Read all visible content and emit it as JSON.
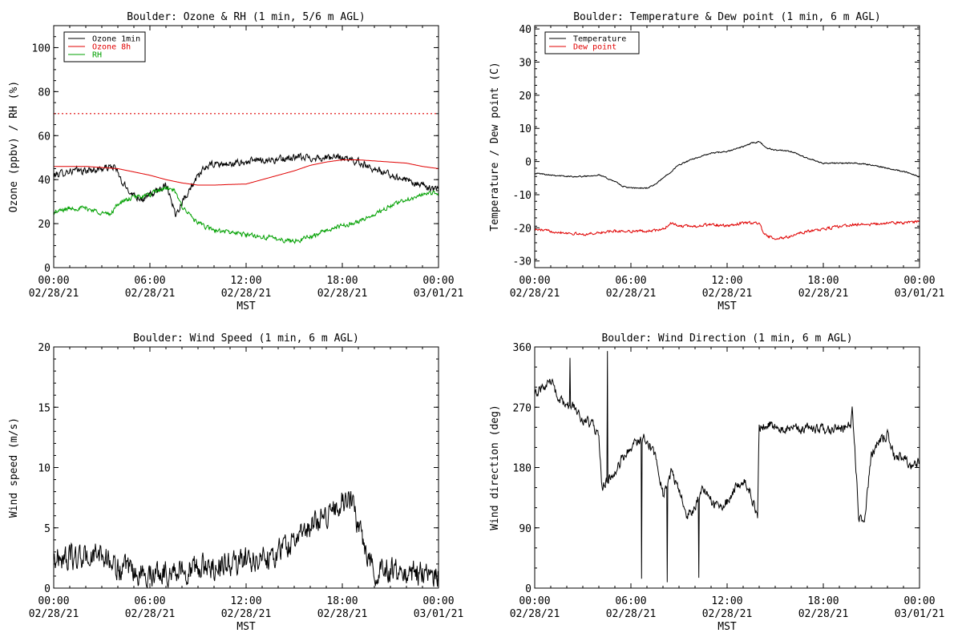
{
  "colors": {
    "black": "#000000",
    "red": "#e00000",
    "green": "#00a000",
    "dotted_red": "#e00000"
  },
  "chart_data": [
    {
      "id": "ozone",
      "type": "line",
      "title": "Boulder: Ozone & RH (1 min, 5/6 m AGL)",
      "xlabel": "MST",
      "ylabel": "Ozone (ppbv) / RH (%)",
      "xlim": [
        0,
        24
      ],
      "ylim": [
        0,
        110
      ],
      "yticks": [
        0,
        20,
        40,
        60,
        80,
        100
      ],
      "xticks": [
        {
          "t": 0,
          "time": "00:00",
          "date": "02/28/21"
        },
        {
          "t": 6,
          "time": "06:00",
          "date": "02/28/21"
        },
        {
          "t": 12,
          "time": "12:00",
          "date": "02/28/21"
        },
        {
          "t": 18,
          "time": "18:00",
          "date": "02/28/21"
        },
        {
          "t": 24,
          "time": "00:00",
          "date": "03/01/21"
        }
      ],
      "grid": false,
      "legend_position": "top-left",
      "reference_line": {
        "y": 70,
        "color": "#e00000",
        "style": "dotted"
      },
      "series": [
        {
          "name": "Ozone 1min",
          "color": "#000000",
          "noise": 2.5,
          "x": [
            0,
            1,
            2,
            3,
            3.8,
            4.3,
            5,
            5.6,
            6,
            6.5,
            7,
            7.3,
            7.6,
            8,
            8.5,
            9,
            9.5,
            10,
            11,
            12,
            13,
            14,
            15,
            16,
            17,
            18,
            19,
            20,
            21,
            22,
            23,
            24
          ],
          "y": [
            42,
            44,
            44,
            45,
            46,
            38,
            33,
            31,
            33,
            35,
            38,
            32,
            24,
            30,
            36,
            41,
            46,
            47,
            47,
            48,
            49,
            49,
            50,
            50,
            50,
            50,
            48,
            45,
            42,
            40,
            37,
            35
          ]
        },
        {
          "name": "Ozone 8h",
          "color": "#e00000",
          "noise": 0,
          "x": [
            0,
            2,
            4,
            6,
            7,
            8,
            9,
            10,
            11,
            12,
            13,
            14,
            15,
            16,
            17,
            18,
            19,
            20,
            21,
            22,
            23,
            24
          ],
          "y": [
            46,
            46,
            45,
            42,
            40,
            38.5,
            37.5,
            37.5,
            37.8,
            38,
            40,
            42,
            44,
            46.5,
            48,
            49,
            49,
            48.5,
            48,
            47.5,
            46,
            45
          ]
        },
        {
          "name": "RH",
          "color": "#00a000",
          "noise": 1.6,
          "x": [
            0,
            1,
            2,
            3,
            3.5,
            4,
            5,
            6,
            6.5,
            7,
            7.5,
            8,
            9,
            10,
            11,
            12,
            13,
            14,
            15,
            16,
            17,
            18,
            19,
            20,
            21,
            22,
            23,
            24
          ],
          "y": [
            25,
            27,
            27,
            25,
            24,
            29,
            32,
            33,
            35,
            36,
            35,
            28,
            20,
            17,
            16,
            15,
            14,
            13,
            12,
            14,
            17,
            19,
            21,
            24,
            28,
            31,
            33,
            34
          ]
        }
      ]
    },
    {
      "id": "temp",
      "type": "line",
      "title": "Boulder: Temperature & Dew point (1 min, 6 m AGL)",
      "xlabel": "MST",
      "ylabel": "Temperature / Dew point (C)",
      "xlim": [
        0,
        24
      ],
      "ylim": [
        -32,
        41
      ],
      "yticks": [
        -30,
        -20,
        -10,
        0,
        10,
        20,
        30,
        40
      ],
      "xticks": [
        {
          "t": 0,
          "time": "00:00",
          "date": "02/28/21"
        },
        {
          "t": 6,
          "time": "06:00",
          "date": "02/28/21"
        },
        {
          "t": 12,
          "time": "12:00",
          "date": "02/28/21"
        },
        {
          "t": 18,
          "time": "18:00",
          "date": "02/28/21"
        },
        {
          "t": 24,
          "time": "00:00",
          "date": "03/01/21"
        }
      ],
      "grid": false,
      "legend_position": "top-left",
      "series": [
        {
          "name": "Temperature",
          "color": "#000000",
          "noise": 0.3,
          "x": [
            0,
            1,
            2,
            3,
            4,
            5,
            5.5,
            6,
            6.5,
            7,
            7.5,
            8,
            8.5,
            9,
            10,
            11,
            12,
            13,
            13.5,
            14,
            14.5,
            15,
            16,
            17,
            18,
            19,
            20,
            21,
            22,
            23,
            24
          ],
          "y": [
            -3.5,
            -4,
            -4.5,
            -4.5,
            -4,
            -6,
            -7.5,
            -8,
            -8,
            -8,
            -7,
            -5,
            -3,
            -1,
            1,
            2.5,
            3,
            4.5,
            5.5,
            6,
            4,
            3.5,
            3,
            1,
            -0.5,
            -0.5,
            -0.5,
            -1,
            -2,
            -3,
            -4.5
          ]
        },
        {
          "name": "Dew point",
          "color": "#e00000",
          "noise": 0.6,
          "x": [
            0,
            1,
            2,
            3,
            4,
            5,
            6,
            7,
            8,
            8.5,
            9,
            10,
            11,
            12,
            13,
            14,
            14.3,
            15,
            16,
            17,
            18,
            19,
            20,
            21,
            22,
            23,
            24
          ],
          "y": [
            -20.5,
            -21,
            -21.5,
            -22,
            -21.5,
            -21,
            -21,
            -21,
            -20.5,
            -18.5,
            -19.5,
            -19.5,
            -19,
            -19.5,
            -18.5,
            -18.5,
            -22,
            -23.5,
            -22.5,
            -21,
            -20.5,
            -19.5,
            -19,
            -19,
            -18.5,
            -18.5,
            -18
          ]
        }
      ]
    },
    {
      "id": "wspd",
      "type": "line",
      "title": "Boulder: Wind Speed (1 min, 6 m AGL)",
      "xlabel": "MST",
      "ylabel": "Wind speed (m/s)",
      "xlim": [
        0,
        24
      ],
      "ylim": [
        0,
        20
      ],
      "yticks": [
        0,
        5,
        10,
        15,
        20
      ],
      "xticks": [
        {
          "t": 0,
          "time": "00:00",
          "date": "02/28/21"
        },
        {
          "t": 6,
          "time": "06:00",
          "date": "02/28/21"
        },
        {
          "t": 12,
          "time": "12:00",
          "date": "02/28/21"
        },
        {
          "t": 18,
          "time": "18:00",
          "date": "02/28/21"
        },
        {
          "t": 24,
          "time": "00:00",
          "date": "03/01/21"
        }
      ],
      "grid": false,
      "series": [
        {
          "name": "",
          "color": "#000000",
          "noise": 1.6,
          "x": [
            0,
            1,
            2,
            3,
            4,
            5,
            6,
            7,
            8,
            9,
            10,
            11,
            12,
            13,
            14,
            15,
            16,
            17,
            17.5,
            18,
            18.5,
            19,
            19.5,
            20,
            21,
            22,
            23,
            24
          ],
          "y": [
            2.5,
            2.5,
            2.5,
            2.8,
            1.6,
            1.2,
            1.2,
            1.4,
            1.5,
            1.6,
            1.8,
            2,
            2.3,
            2.5,
            3,
            4,
            5,
            6,
            6.8,
            7.3,
            7,
            5.5,
            3,
            1.6,
            1.5,
            1.3,
            1.2,
            1.1
          ]
        }
      ]
    },
    {
      "id": "wdir",
      "type": "line",
      "title": "Boulder: Wind Direction (1 min, 6 m AGL)",
      "xlabel": "MST",
      "ylabel": "Wind direction (deg)",
      "xlim": [
        0,
        24
      ],
      "ylim": [
        0,
        360
      ],
      "yticks": [
        0,
        90,
        180,
        270,
        360
      ],
      "xticks": [
        {
          "t": 0,
          "time": "00:00",
          "date": "02/28/21"
        },
        {
          "t": 6,
          "time": "06:00",
          "date": "02/28/21"
        },
        {
          "t": 12,
          "time": "12:00",
          "date": "02/28/21"
        },
        {
          "t": 18,
          "time": "18:00",
          "date": "02/28/21"
        },
        {
          "t": 24,
          "time": "00:00",
          "date": "03/01/21"
        }
      ],
      "grid": false,
      "series": [
        {
          "name": "",
          "color": "#000000",
          "noise": 12,
          "x": [
            0,
            0.5,
            1,
            1.5,
            2,
            2.5,
            3,
            3.5,
            4,
            4.2,
            4.5,
            5,
            5.5,
            6,
            6.5,
            7,
            7.5,
            8,
            8.5,
            9,
            9.5,
            10,
            10.5,
            11,
            11.5,
            12,
            12.5,
            13,
            13.5,
            13.9,
            14,
            14.5,
            15,
            16,
            17,
            18,
            19,
            19.7,
            19.8,
            20.2,
            20.5,
            21,
            21.5,
            22,
            22.5,
            23,
            23.5,
            24
          ],
          "y": [
            285,
            300,
            310,
            280,
            270,
            270,
            250,
            245,
            230,
            150,
            160,
            175,
            195,
            210,
            220,
            225,
            195,
            140,
            170,
            150,
            110,
            120,
            150,
            130,
            120,
            130,
            150,
            160,
            140,
            100,
            240,
            245,
            240,
            238,
            238,
            238,
            238,
            240,
            280,
            110,
            90,
            200,
            220,
            230,
            190,
            200,
            180,
            190
          ]
        }
      ]
    }
  ]
}
